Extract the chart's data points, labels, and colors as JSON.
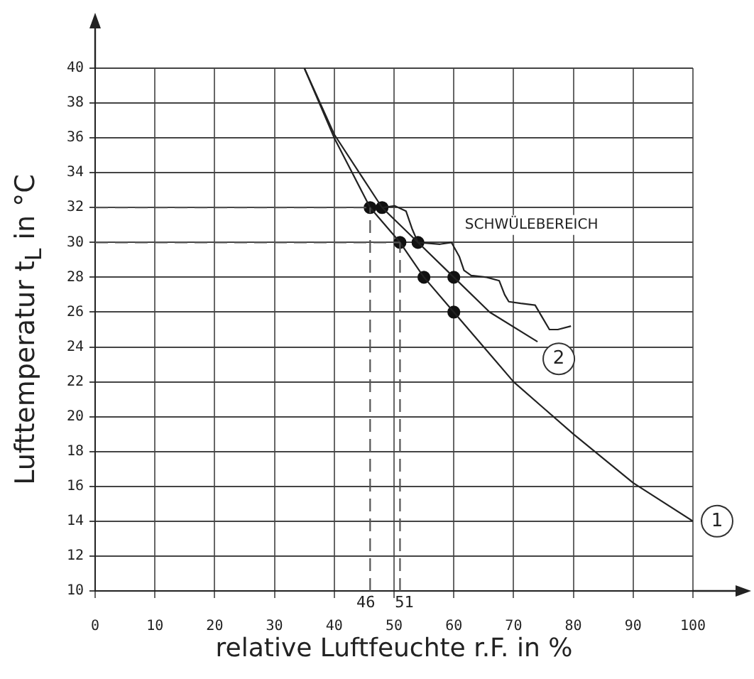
{
  "chart_data": {
    "type": "line",
    "xlabel": "relative Luftfeuchte r.F. in %",
    "ylabel": "Lufttemperatur t$_{L}$ in °C",
    "xlim": [
      0,
      100
    ],
    "xticks": [
      0,
      10,
      20,
      30,
      40,
      50,
      60,
      70,
      80,
      90,
      100
    ],
    "ylim": [
      10,
      40
    ],
    "yticks": [
      10,
      12,
      14,
      16,
      18,
      20,
      22,
      24,
      26,
      28,
      30,
      32,
      34,
      36,
      38,
      40
    ],
    "grid": true,
    "legend": false,
    "series": [
      {
        "name": "1",
        "color": "#222222",
        "marker": "none",
        "x": [
          35,
          40,
          46,
          51,
          55,
          60,
          70,
          80,
          90,
          100
        ],
        "values": [
          40,
          36,
          32,
          30,
          28,
          26,
          22,
          19,
          16.2,
          14
        ]
      },
      {
        "name": "2",
        "color": "#222222",
        "marker": "none",
        "x": [
          35,
          40,
          48,
          54,
          60,
          66,
          74
        ],
        "values": [
          40,
          36.2,
          32,
          30,
          28,
          26,
          24.3
        ]
      },
      {
        "color": "#222222",
        "marker": "none",
        "x": [
          48,
          50.1,
          52,
          53,
          54,
          57.7,
          59.6,
          60.9,
          61.7,
          62.9,
          65.5,
          67.6,
          68.5,
          69.2,
          71.2,
          73.6,
          74.8,
          76,
          77.4,
          79.6
        ],
        "values": [
          32,
          32.1,
          31.8,
          30.8,
          30,
          29.9,
          30,
          29.2,
          28.4,
          28.1,
          28,
          27.8,
          27,
          26.6,
          26.5,
          26.4,
          25.7,
          25,
          25,
          25.2
        ]
      },
      {
        "type": "scatter",
        "color": "#111111",
        "marker": "circle",
        "x": [
          46,
          48,
          51,
          54,
          55,
          60,
          60
        ],
        "values": [
          32,
          32,
          30,
          30,
          28,
          28,
          26
        ]
      }
    ],
    "ref_lines": [
      {
        "axis": "x",
        "value": 46,
        "label": "46",
        "line_style": "dashed"
      },
      {
        "axis": "x",
        "value": 51,
        "label": "51",
        "line_style": "dashed"
      },
      {
        "axis": "y",
        "value": 32,
        "line_style": "dashed"
      },
      {
        "axis": "y",
        "value": 30,
        "line_style": "dashed"
      }
    ],
    "annotations": [
      "SCHWÜLEBEREICH"
    ]
  }
}
